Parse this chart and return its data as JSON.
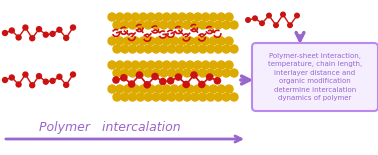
{
  "bg_color": "#ffffff",
  "purple": "#9966cc",
  "purple_light": "#bb88ee",
  "purple_fill": "#f5eeff",
  "red": "#cc1111",
  "yellow": "#ddaa00",
  "box_text": "Polymer-sheet interaction,\ntemperature, chain length,\ninterlayer distance and\norganic modification\ndetermine intercalation\ndynamics of polymer",
  "bottom_label": "Polymer   intercalation",
  "fig_w": 3.78,
  "fig_h": 1.55,
  "dpi": 100
}
